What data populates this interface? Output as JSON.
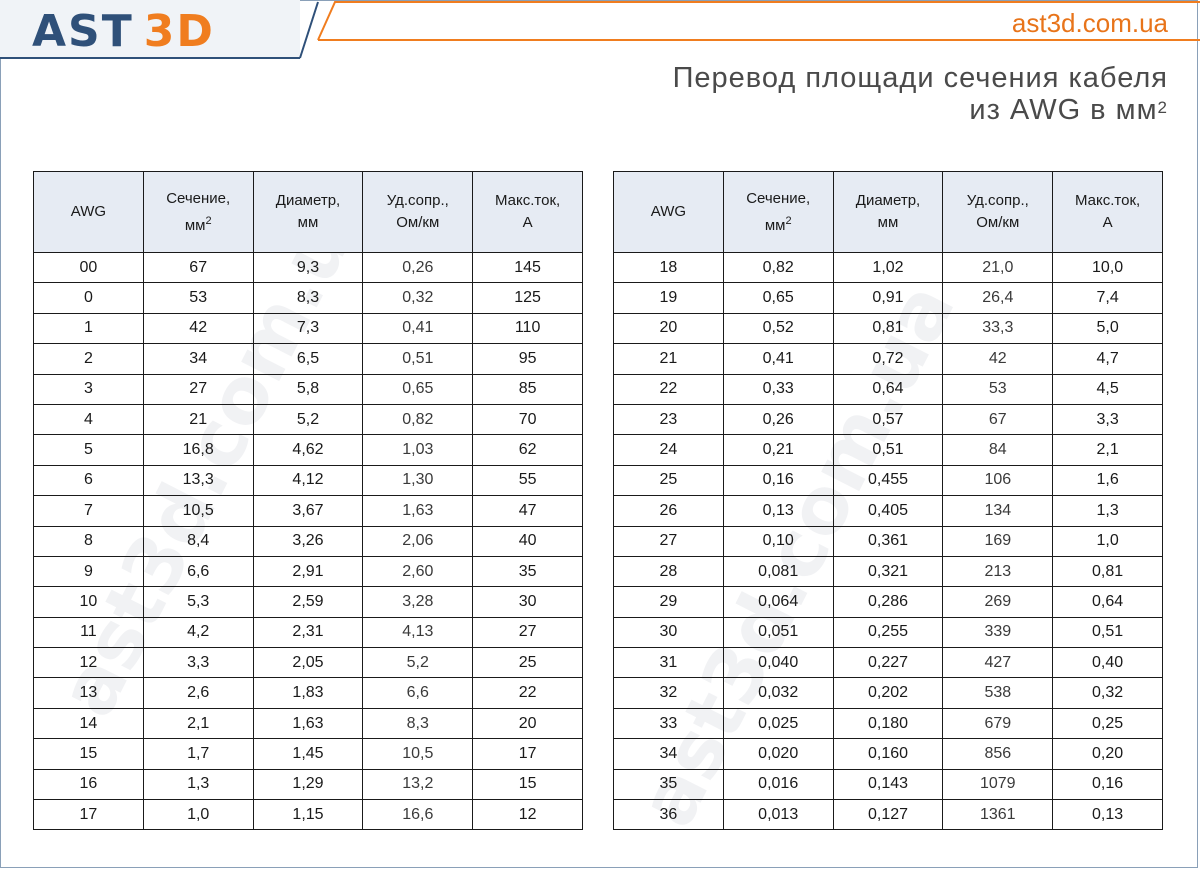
{
  "header": {
    "logo_left": "AST",
    "logo_right": "3D",
    "site": "ast3d.com.ua",
    "title_line1": "Перевод площади сечения кабеля",
    "title_line2_prefix": "из AWG в мм",
    "title_line2_sup": "2"
  },
  "watermark": "ast3d.com.ua",
  "colors": {
    "accent": "#f07d1f",
    "brand": "#2f5079",
    "header_bg": "#e6ebf3"
  },
  "columns": {
    "awg": "AWG",
    "section_line1": "Сечение,",
    "section_line2": "мм",
    "section_sup": "2",
    "diameter_line1": "Диаметр,",
    "diameter_line2": "мм",
    "resistance_line1": "Уд.сопр.,",
    "resistance_line2": "Ом/км",
    "current_line1": "Макс.ток,",
    "current_line2": "А"
  },
  "table_left": [
    [
      "00",
      "67",
      "9,3",
      "0,26",
      "145"
    ],
    [
      "0",
      "53",
      "8,3",
      "0,32",
      "125"
    ],
    [
      "1",
      "42",
      "7,3",
      "0,41",
      "110"
    ],
    [
      "2",
      "34",
      "6,5",
      "0,51",
      "95"
    ],
    [
      "3",
      "27",
      "5,8",
      "0,65",
      "85"
    ],
    [
      "4",
      "21",
      "5,2",
      "0,82",
      "70"
    ],
    [
      "5",
      "16,8",
      "4,62",
      "1,03",
      "62"
    ],
    [
      "6",
      "13,3",
      "4,12",
      "1,30",
      "55"
    ],
    [
      "7",
      "10,5",
      "3,67",
      "1,63",
      "47"
    ],
    [
      "8",
      "8,4",
      "3,26",
      "2,06",
      "40"
    ],
    [
      "9",
      "6,6",
      "2,91",
      "2,60",
      "35"
    ],
    [
      "10",
      "5,3",
      "2,59",
      "3,28",
      "30"
    ],
    [
      "11",
      "4,2",
      "2,31",
      "4,13",
      "27"
    ],
    [
      "12",
      "3,3",
      "2,05",
      "5,2",
      "25"
    ],
    [
      "13",
      "2,6",
      "1,83",
      "6,6",
      "22"
    ],
    [
      "14",
      "2,1",
      "1,63",
      "8,3",
      "20"
    ],
    [
      "15",
      "1,7",
      "1,45",
      "10,5",
      "17"
    ],
    [
      "16",
      "1,3",
      "1,29",
      "13,2",
      "15"
    ],
    [
      "17",
      "1,0",
      "1,15",
      "16,6",
      "12"
    ]
  ],
  "table_right": [
    [
      "18",
      "0,82",
      "1,02",
      "21,0",
      "10,0"
    ],
    [
      "19",
      "0,65",
      "0,91",
      "26,4",
      "7,4"
    ],
    [
      "20",
      "0,52",
      "0,81",
      "33,3",
      "5,0"
    ],
    [
      "21",
      "0,41",
      "0,72",
      "42",
      "4,7"
    ],
    [
      "22",
      "0,33",
      "0,64",
      "53",
      "4,5"
    ],
    [
      "23",
      "0,26",
      "0,57",
      "67",
      "3,3"
    ],
    [
      "24",
      "0,21",
      "0,51",
      "84",
      "2,1"
    ],
    [
      "25",
      "0,16",
      "0,455",
      "106",
      "1,6"
    ],
    [
      "26",
      "0,13",
      "0,405",
      "134",
      "1,3"
    ],
    [
      "27",
      "0,10",
      "0,361",
      "169",
      "1,0"
    ],
    [
      "28",
      "0,081",
      "0,321",
      "213",
      "0,81"
    ],
    [
      "29",
      "0,064",
      "0,286",
      "269",
      "0,64"
    ],
    [
      "30",
      "0,051",
      "0,255",
      "339",
      "0,51"
    ],
    [
      "31",
      "0,040",
      "0,227",
      "427",
      "0,40"
    ],
    [
      "32",
      "0,032",
      "0,202",
      "538",
      "0,32"
    ],
    [
      "33",
      "0,025",
      "0,180",
      "679",
      "0,25"
    ],
    [
      "34",
      "0,020",
      "0,160",
      "856",
      "0,20"
    ],
    [
      "35",
      "0,016",
      "0,143",
      "1079",
      "0,16"
    ],
    [
      "36",
      "0,013",
      "0,127",
      "1361",
      "0,13"
    ]
  ]
}
